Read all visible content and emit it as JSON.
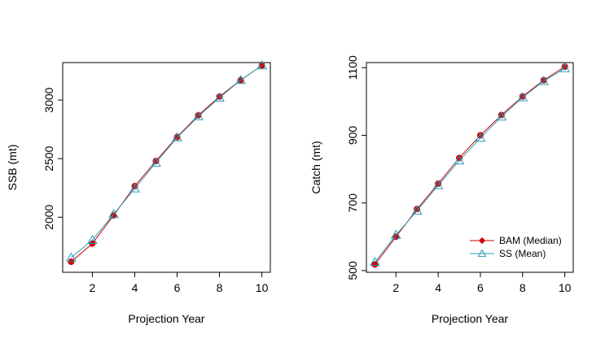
{
  "colors": {
    "bam": "#cc0000",
    "bam_point": "#cc0000",
    "ss": "#2a9bb8",
    "axis": "#000000"
  },
  "chart_data": [
    {
      "type": "line",
      "xlabel": "Projection Year",
      "ylabel": "SSB (mt)",
      "xlim": [
        0.6,
        10.4
      ],
      "ylim": [
        1530,
        3320
      ],
      "xticks": [
        2,
        4,
        6,
        8,
        10
      ],
      "yticks": [
        2000,
        2500,
        3000
      ],
      "x": [
        1,
        2,
        3,
        4,
        5,
        6,
        7,
        8,
        9,
        10
      ],
      "series": [
        {
          "values": [
            1620,
            1775,
            2015,
            2265,
            2480,
            2685,
            2870,
            3030,
            3170,
            3295
          ]
        },
        {
          "values": [
            1655,
            1805,
            2025,
            2245,
            2465,
            2680,
            2860,
            3020,
            3170,
            3295
          ]
        }
      ]
    },
    {
      "type": "line",
      "xlabel": "Projection Year",
      "ylabel": "Catch (mt)",
      "xlim": [
        0.6,
        10.4
      ],
      "ylim": [
        495,
        1115
      ],
      "xticks": [
        2,
        4,
        6,
        8,
        10
      ],
      "yticks": [
        500,
        700,
        900,
        1100
      ],
      "x": [
        1,
        2,
        3,
        4,
        5,
        6,
        7,
        8,
        9,
        10
      ],
      "series": [
        {
          "name": "BAM (Median)",
          "values": [
            518,
            600,
            682,
            757,
            833,
            900,
            960,
            1015,
            1063,
            1103
          ]
        },
        {
          "name": "SS (Mean)",
          "values": [
            525,
            605,
            677,
            752,
            825,
            892,
            955,
            1012,
            1060,
            1098
          ]
        }
      ],
      "legend": "bottom-right"
    }
  ]
}
